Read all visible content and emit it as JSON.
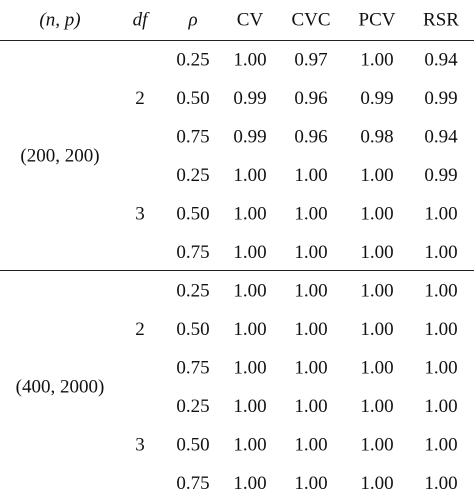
{
  "table": {
    "columns": [
      "(n, p)",
      "df",
      "ρ",
      "CV",
      "CVC",
      "PCV",
      "RSR"
    ],
    "groups": [
      {
        "label": "(200, 200)",
        "subgroups": [
          {
            "df": "2",
            "rows": [
              {
                "rho": "0.25",
                "values": [
                  "1.00",
                  "0.97",
                  "1.00",
                  "0.94"
                ]
              },
              {
                "rho": "0.50",
                "values": [
                  "0.99",
                  "0.96",
                  "0.99",
                  "0.99"
                ]
              },
              {
                "rho": "0.75",
                "values": [
                  "0.99",
                  "0.96",
                  "0.98",
                  "0.94"
                ]
              }
            ]
          },
          {
            "df": "3",
            "rows": [
              {
                "rho": "0.25",
                "values": [
                  "1.00",
                  "1.00",
                  "1.00",
                  "0.99"
                ]
              },
              {
                "rho": "0.50",
                "values": [
                  "1.00",
                  "1.00",
                  "1.00",
                  "1.00"
                ]
              },
              {
                "rho": "0.75",
                "values": [
                  "1.00",
                  "1.00",
                  "1.00",
                  "1.00"
                ]
              }
            ]
          }
        ]
      },
      {
        "label": "(400, 2000)",
        "subgroups": [
          {
            "df": "2",
            "rows": [
              {
                "rho": "0.25",
                "values": [
                  "1.00",
                  "1.00",
                  "1.00",
                  "1.00"
                ]
              },
              {
                "rho": "0.50",
                "values": [
                  "1.00",
                  "1.00",
                  "1.00",
                  "1.00"
                ]
              },
              {
                "rho": "0.75",
                "values": [
                  "1.00",
                  "1.00",
                  "1.00",
                  "1.00"
                ]
              }
            ]
          },
          {
            "df": "3",
            "rows": [
              {
                "rho": "0.25",
                "values": [
                  "1.00",
                  "1.00",
                  "1.00",
                  "1.00"
                ]
              },
              {
                "rho": "0.50",
                "values": [
                  "1.00",
                  "1.00",
                  "1.00",
                  "1.00"
                ]
              },
              {
                "rho": "0.75",
                "values": [
                  "1.00",
                  "1.00",
                  "1.00",
                  "1.00"
                ]
              }
            ]
          }
        ]
      }
    ]
  }
}
